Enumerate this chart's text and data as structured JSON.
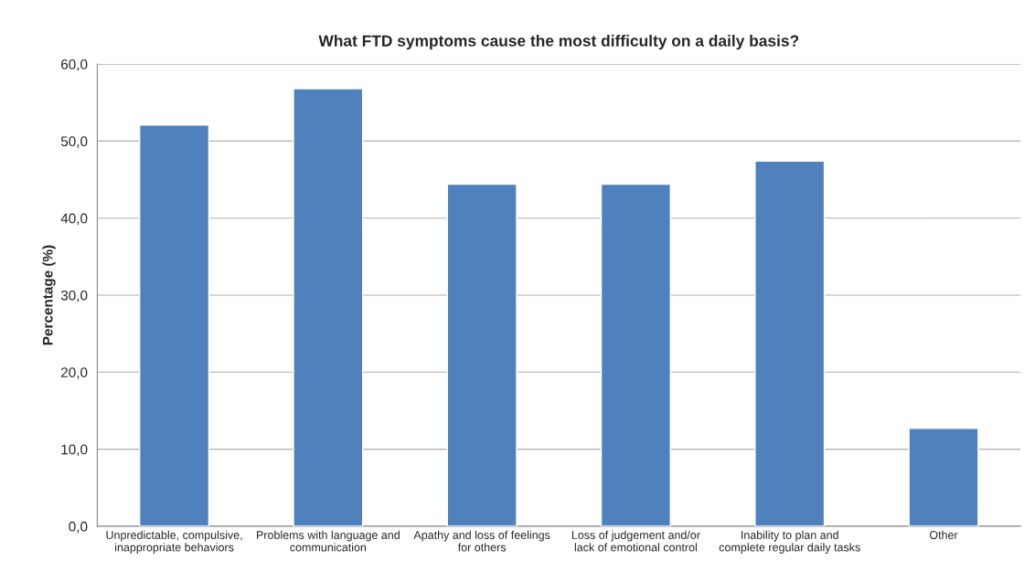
{
  "chart_data": {
    "type": "bar",
    "title": "What FTD symptoms cause the most difficulty on a daily basis?",
    "ylabel": "Percentage (%)",
    "categories": [
      "Unpredictable, compulsive,\ninappropriate behaviors",
      "Problems with language and\ncommunication",
      "Apathy and loss of feelings\nfor others",
      "Loss of judgement and/or\nlack of emotional control",
      "Inability to plan and\ncomplete regular daily tasks",
      "Other"
    ],
    "values": [
      52.1,
      56.8,
      44.4,
      44.4,
      47.4,
      12.7
    ],
    "color": "#4f81bd",
    "ylim": [
      0,
      60
    ],
    "yticks": [
      {
        "value": 0,
        "label": "0,0"
      },
      {
        "value": 10,
        "label": "10,0"
      },
      {
        "value": 20,
        "label": "20,0"
      },
      {
        "value": 30,
        "label": "30,0"
      },
      {
        "value": 40,
        "label": "40,0"
      },
      {
        "value": 50,
        "label": "50,0"
      },
      {
        "value": 60,
        "label": "60,0"
      }
    ],
    "grid": "y"
  }
}
